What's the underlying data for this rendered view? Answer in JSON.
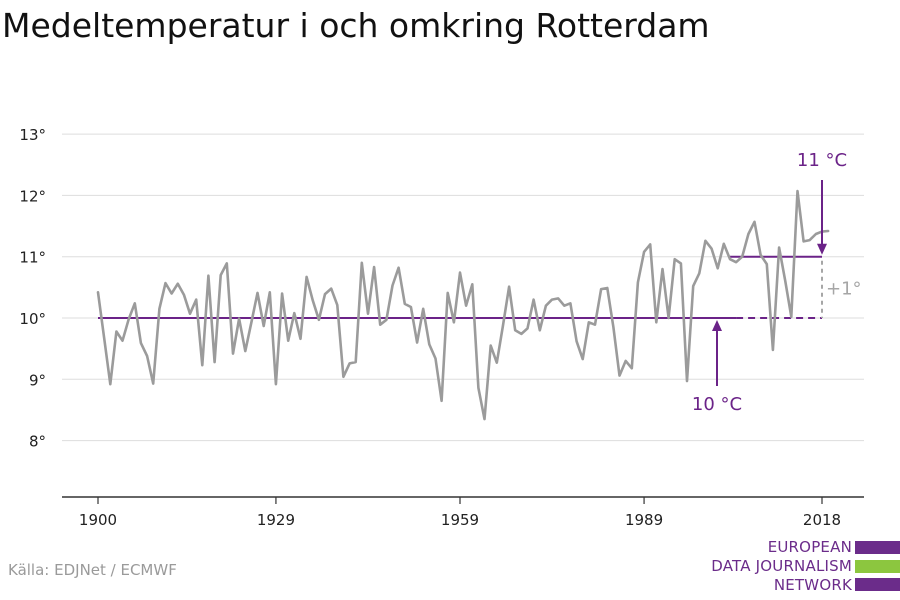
{
  "title": "Medeltemperatur i och omkring Rotterdam",
  "source": "Källa: EDJNet / ECMWF",
  "logo": {
    "line1": "EUROPEAN",
    "line2": "DATA JOURNALISM",
    "line3": "NETWORK",
    "colors": [
      "#6b2c8a",
      "#8cc63f",
      "#6b2c8a"
    ]
  },
  "colors": {
    "series": "#9b9b9b",
    "accent": "#6b2388",
    "delta": "#a6a6a6",
    "grid": "#dddddd",
    "axis": "#333333"
  },
  "chart_data": {
    "type": "line",
    "title": "Medeltemperatur i och omkring Rotterdam",
    "x_ticks": [
      1900,
      1929,
      1959,
      1989,
      2018
    ],
    "y_ticks": [
      "8°",
      "9°",
      "10°",
      "11°",
      "12°",
      "13°"
    ],
    "y_tick_values": [
      8,
      9,
      10,
      11,
      12,
      13
    ],
    "ylim": [
      7.1,
      13.4
    ],
    "xlim": [
      1900,
      2018
    ],
    "grid": "horizontal",
    "series": [
      {
        "x": [
          1900,
          1901,
          1902,
          1903,
          1904,
          1905,
          1906,
          1907,
          1908,
          1909,
          1910,
          1911,
          1912,
          1913,
          1914,
          1915,
          1916,
          1917,
          1918,
          1919,
          1920,
          1921,
          1922,
          1923,
          1924,
          1925,
          1926,
          1927,
          1928,
          1929,
          1930,
          1931,
          1932,
          1933,
          1934,
          1935,
          1936,
          1937,
          1938,
          1939,
          1940,
          1941,
          1942,
          1943,
          1944,
          1945,
          1946,
          1947,
          1948,
          1949,
          1950,
          1951,
          1952,
          1953,
          1954,
          1955,
          1956,
          1957,
          1958,
          1959,
          1960,
          1961,
          1962,
          1963,
          1964,
          1965,
          1966,
          1967,
          1968,
          1969,
          1970,
          1971,
          1972,
          1973,
          1974,
          1975,
          1976,
          1977,
          1978,
          1979,
          1980,
          1981,
          1982,
          1983,
          1984,
          1985,
          1986,
          1987,
          1988,
          1989,
          1990,
          1991,
          1992,
          1993,
          1994,
          1995,
          1996,
          1997,
          1998,
          1999,
          2000,
          2001,
          2002,
          2003,
          2004,
          2005,
          2006,
          2007,
          2008,
          2009,
          2010,
          2011,
          2012,
          2013,
          2014,
          2015,
          2016,
          2017,
          2018,
          2019
        ],
        "values": [
          10.42,
          9.68,
          8.92,
          9.78,
          9.63,
          9.98,
          10.24,
          9.59,
          9.38,
          8.93,
          10.15,
          10.57,
          10.4,
          10.56,
          10.38,
          10.07,
          10.3,
          9.23,
          10.69,
          9.28,
          10.7,
          10.89,
          9.42,
          9.99,
          9.46,
          9.93,
          10.41,
          9.87,
          10.42,
          8.92,
          10.4,
          9.63,
          10.08,
          9.66,
          10.67,
          10.29,
          9.97,
          10.39,
          10.48,
          10.21,
          9.04,
          9.26,
          9.28,
          10.9,
          10.07,
          10.83,
          9.89,
          9.97,
          10.53,
          10.82,
          10.23,
          10.18,
          9.6,
          10.15,
          9.57,
          9.34,
          8.65,
          10.41,
          9.93,
          10.74,
          10.2,
          10.55,
          8.86,
          8.35,
          9.55,
          9.27,
          9.87,
          10.51,
          9.8,
          9.74,
          9.83,
          10.3,
          9.8,
          10.2,
          10.3,
          10.32,
          10.2,
          10.24,
          9.62,
          9.33,
          9.93,
          9.89,
          10.47,
          10.49,
          9.85,
          9.06,
          9.3,
          9.18,
          10.58,
          11.08,
          11.2,
          9.93,
          10.8,
          10.0,
          10.96,
          10.89,
          8.97,
          10.52,
          10.73,
          11.26,
          11.13,
          10.81,
          11.21,
          10.96,
          10.91,
          11.0,
          11.37,
          11.57,
          11.03,
          10.88,
          9.48,
          11.15,
          10.61,
          10.02,
          12.07,
          11.25,
          11.27,
          11.37,
          11.41,
          11.42
        ]
      }
    ],
    "annotations": {
      "baseline_label": "10 °C",
      "baseline_value": 10,
      "baseline_solid_end": 2004,
      "recent_label": "11 °C",
      "recent_value": 11,
      "recent_start": 2003,
      "delta_label": "+1°"
    }
  }
}
